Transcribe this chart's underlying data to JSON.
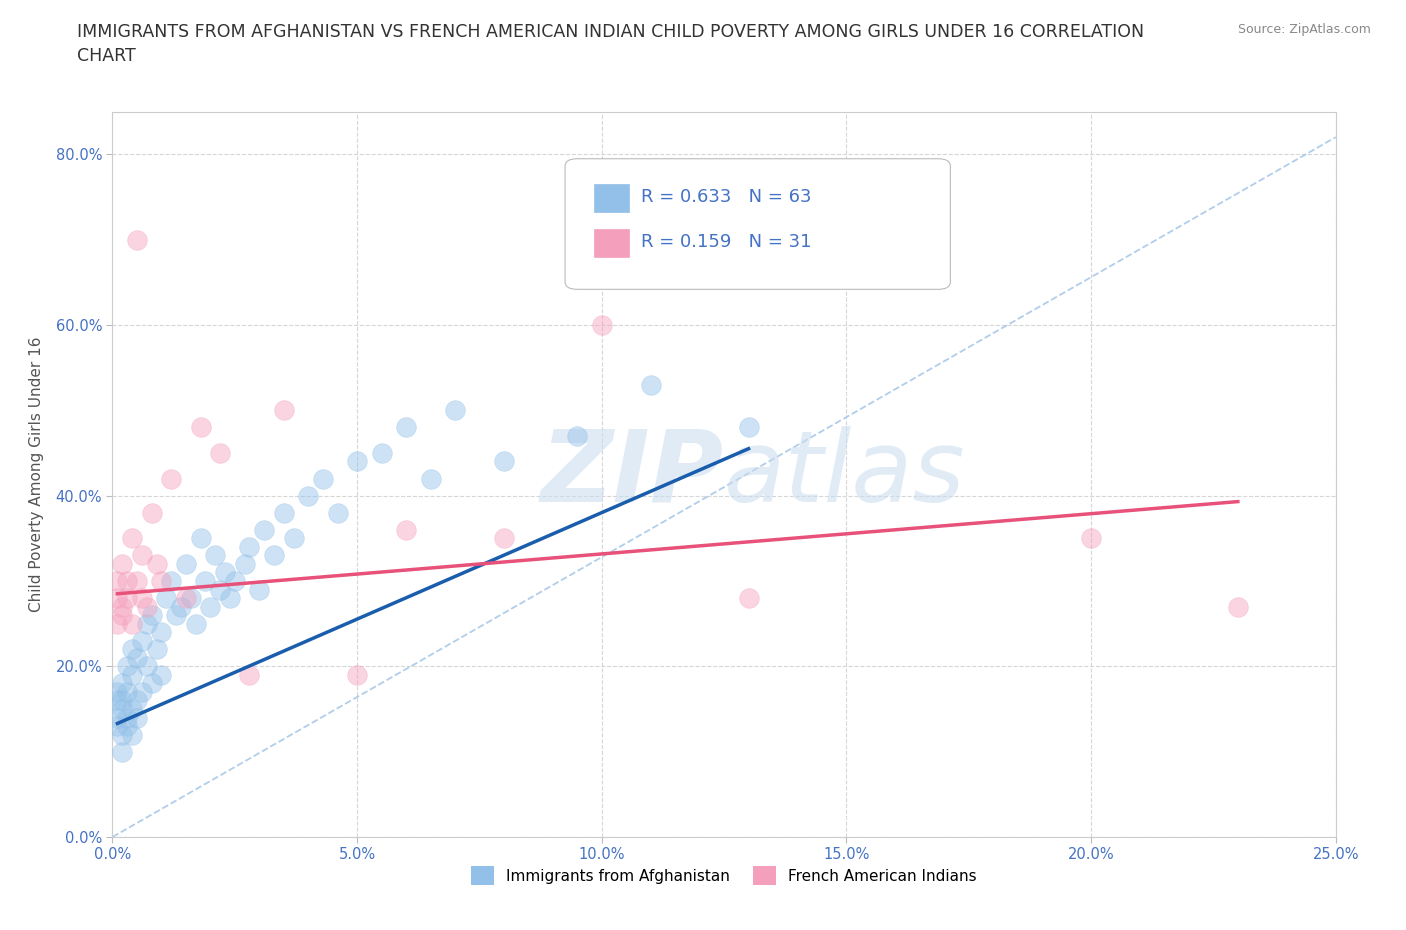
{
  "title": "IMMIGRANTS FROM AFGHANISTAN VS FRENCH AMERICAN INDIAN CHILD POVERTY AMONG GIRLS UNDER 16 CORRELATION\nCHART",
  "source": "Source: ZipAtlas.com",
  "ylabel": "Child Poverty Among Girls Under 16",
  "blue_label": "Immigrants from Afghanistan",
  "pink_label": "French American Indians",
  "blue_R": "0.633",
  "blue_N": "63",
  "pink_R": "0.159",
  "pink_N": "31",
  "xlim": [
    0.0,
    0.25
  ],
  "ylim": [
    0.0,
    0.85
  ],
  "xticks": [
    0.0,
    0.05,
    0.1,
    0.15,
    0.2,
    0.25
  ],
  "xtick_labels": [
    "0.0%",
    "5.0%",
    "10.0%",
    "15.0%",
    "20.0%",
    "25.0%"
  ],
  "yticks": [
    0.0,
    0.2,
    0.4,
    0.6,
    0.8
  ],
  "ytick_labels": [
    "0.0%",
    "20.0%",
    "40.0%",
    "60.0%",
    "80.0%"
  ],
  "blue_color": "#92C0E8",
  "pink_color": "#F4A0BC",
  "blue_line_color": "#1A5DAD",
  "pink_line_color": "#E8527A",
  "diag_color": "#A8C8E8",
  "background_color": "#FFFFFF",
  "blue_scatter_x": [
    0.001,
    0.001,
    0.001,
    0.001,
    0.002,
    0.002,
    0.002,
    0.002,
    0.002,
    0.003,
    0.003,
    0.003,
    0.003,
    0.004,
    0.004,
    0.004,
    0.004,
    0.005,
    0.005,
    0.005,
    0.006,
    0.006,
    0.007,
    0.007,
    0.008,
    0.008,
    0.009,
    0.01,
    0.01,
    0.011,
    0.012,
    0.013,
    0.014,
    0.015,
    0.016,
    0.017,
    0.018,
    0.019,
    0.02,
    0.021,
    0.022,
    0.023,
    0.024,
    0.025,
    0.027,
    0.028,
    0.03,
    0.031,
    0.033,
    0.035,
    0.037,
    0.04,
    0.043,
    0.046,
    0.05,
    0.055,
    0.06,
    0.065,
    0.07,
    0.08,
    0.095,
    0.11,
    0.13
  ],
  "blue_scatter_y": [
    0.14,
    0.17,
    0.16,
    0.13,
    0.15,
    0.12,
    0.18,
    0.1,
    0.16,
    0.13,
    0.2,
    0.14,
    0.17,
    0.15,
    0.22,
    0.12,
    0.19,
    0.16,
    0.14,
    0.21,
    0.17,
    0.23,
    0.25,
    0.2,
    0.18,
    0.26,
    0.22,
    0.24,
    0.19,
    0.28,
    0.3,
    0.26,
    0.27,
    0.32,
    0.28,
    0.25,
    0.35,
    0.3,
    0.27,
    0.33,
    0.29,
    0.31,
    0.28,
    0.3,
    0.32,
    0.34,
    0.29,
    0.36,
    0.33,
    0.38,
    0.35,
    0.4,
    0.42,
    0.38,
    0.44,
    0.45,
    0.48,
    0.42,
    0.5,
    0.44,
    0.47,
    0.53,
    0.48
  ],
  "pink_scatter_x": [
    0.001,
    0.001,
    0.001,
    0.002,
    0.002,
    0.002,
    0.003,
    0.003,
    0.004,
    0.004,
    0.005,
    0.005,
    0.006,
    0.006,
    0.007,
    0.008,
    0.009,
    0.01,
    0.012,
    0.015,
    0.018,
    0.022,
    0.028,
    0.035,
    0.05,
    0.06,
    0.08,
    0.1,
    0.13,
    0.2,
    0.23
  ],
  "pink_scatter_y": [
    0.28,
    0.25,
    0.3,
    0.27,
    0.32,
    0.26,
    0.3,
    0.28,
    0.35,
    0.25,
    0.3,
    0.7,
    0.28,
    0.33,
    0.27,
    0.38,
    0.32,
    0.3,
    0.42,
    0.28,
    0.48,
    0.45,
    0.19,
    0.5,
    0.19,
    0.36,
    0.35,
    0.6,
    0.28,
    0.35,
    0.27
  ],
  "blue_trend_x": [
    0.001,
    0.13
  ],
  "blue_trend_y": [
    0.133,
    0.455
  ],
  "pink_trend_x": [
    0.001,
    0.23
  ],
  "pink_trend_y": [
    0.285,
    0.393
  ],
  "watermark_zip": "ZIP",
  "watermark_atlas": "atlas",
  "title_fontsize": 12.5,
  "axis_label_fontsize": 11,
  "tick_fontsize": 10.5,
  "legend_fontsize": 13
}
